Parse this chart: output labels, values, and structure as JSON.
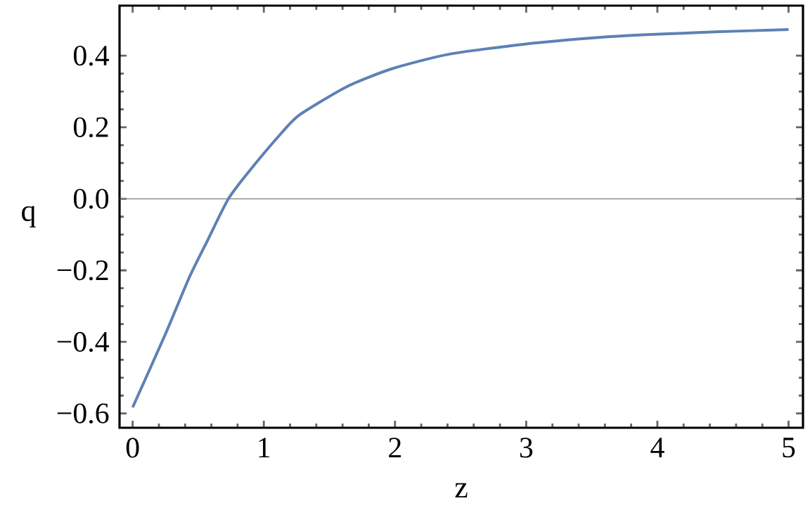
{
  "chart_data": {
    "type": "line",
    "xlabel": "z",
    "ylabel": "q",
    "xlim": [
      -0.1,
      5.11
    ],
    "ylim": [
      -0.64,
      0.54
    ],
    "xticks": [
      0,
      1,
      2,
      3,
      4,
      5
    ],
    "yticks": [
      {
        "value": -0.6,
        "label": "−0.6"
      },
      {
        "value": -0.4,
        "label": "−0.4"
      },
      {
        "value": -0.2,
        "label": "−0.2"
      },
      {
        "value": 0,
        "label": "0.0"
      },
      {
        "value": 0.2,
        "label": "0.2"
      },
      {
        "value": 0.4,
        "label": "0.4"
      }
    ],
    "grid": false,
    "marker": "none",
    "line_style": "solid",
    "ref_lines": [
      {
        "axis": "y",
        "value": 0,
        "color": "#7f7f7f"
      }
    ],
    "series": [
      {
        "color": "#5e81b5",
        "x": [
          0,
          0.25,
          0.43,
          0.57,
          0.73,
          0.89,
          1.13,
          1.27,
          1.63,
          1.98,
          2.41,
          2.98,
          3.62,
          4.31,
          5.0
        ],
        "values": [
          -0.583,
          -0.378,
          -0.221,
          -0.117,
          0,
          0.078,
          0.182,
          0.234,
          0.313,
          0.364,
          0.404,
          0.432,
          0.453,
          0.465,
          0.473
        ]
      }
    ]
  }
}
